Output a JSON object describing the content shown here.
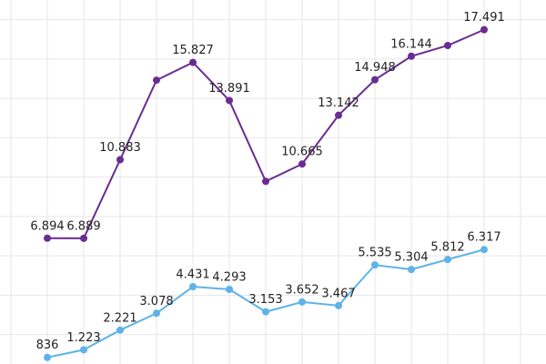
{
  "chart_data": {
    "type": "line",
    "categories": [
      null,
      null,
      null,
      null,
      null,
      null,
      null,
      null,
      null,
      null,
      null,
      null,
      null
    ],
    "series": [
      {
        "color": "#6a2c91",
        "values": [
          6894,
          6889,
          10883,
          14926,
          15827,
          13891,
          9782,
          10665,
          13142,
          14948,
          16144,
          16688,
          17491
        ],
        "value_labels": [
          "6.894",
          "6.889",
          "10.883",
          null,
          "15.827",
          "13.891",
          null,
          "10.665",
          "13.142",
          "14.948",
          "16.144",
          null,
          "17.491"
        ]
      },
      {
        "color": "#5db3e8",
        "values": [
          836,
          1223,
          2221,
          3078,
          4431,
          4293,
          3153,
          3652,
          3467,
          5535,
          5304,
          5812,
          6317
        ],
        "value_labels": [
          "836",
          "1.223",
          "2.221",
          "3.078",
          "4.431",
          "4.293",
          "3.153",
          "3.652",
          "3.467",
          "5.535",
          "5.304",
          "5.812",
          "6.317"
        ]
      }
    ],
    "ylim": [
      500,
      19000
    ],
    "yticks": [
      2000,
      4000,
      6000,
      8000,
      10000,
      12000,
      14000,
      16000,
      18000
    ],
    "grid": true
  }
}
